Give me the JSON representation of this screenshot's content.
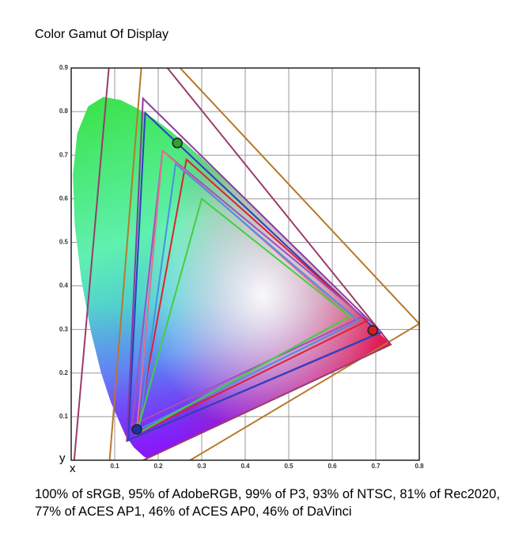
{
  "chart_data": {
    "type": "gamut",
    "title": "Color Gamut Of Display",
    "caption": "100% of sRGB, 95% of AdobeRGB, 99% of P3, 93% of NTSC, 81% of Rec2020, 77% of ACES AP1, 46% of ACES AP0, 46% of DaVinci",
    "x_label": "x",
    "y_label": "y",
    "xlim": [
      0,
      0.8
    ],
    "ylim": [
      0,
      0.9
    ],
    "xticks": [
      0.1,
      0.2,
      0.3,
      0.4,
      0.5,
      0.6,
      0.7,
      0.8
    ],
    "yticks": [
      0.1,
      0.2,
      0.3,
      0.4,
      0.5,
      0.6,
      0.7,
      0.8,
      0.9
    ],
    "grid": true,
    "locus": {
      "x": [
        0.1741,
        0.1666,
        0.144,
        0.1241,
        0.0913,
        0.0687,
        0.0454,
        0.0235,
        0.0082,
        0.0039,
        0.0139,
        0.0389,
        0.0743,
        0.1142,
        0.1547,
        0.1929,
        0.2296,
        0.2658,
        0.3016,
        0.3373,
        0.3731,
        0.4087,
        0.4441,
        0.4788,
        0.5125,
        0.5448,
        0.5752,
        0.6029,
        0.627,
        0.6482,
        0.6658,
        0.6801,
        0.6915,
        0.7006,
        0.7079,
        0.7347
      ],
      "y": [
        0.005,
        0.0089,
        0.0297,
        0.0578,
        0.1327,
        0.2007,
        0.295,
        0.4127,
        0.5384,
        0.6548,
        0.7502,
        0.812,
        0.8338,
        0.8262,
        0.8059,
        0.7816,
        0.7543,
        0.7243,
        0.6923,
        0.6589,
        0.6245,
        0.5896,
        0.5547,
        0.5202,
        0.4866,
        0.4544,
        0.4242,
        0.3965,
        0.3725,
        0.3514,
        0.334,
        0.3197,
        0.3083,
        0.2993,
        0.292,
        0.2653
      ]
    },
    "series": [
      {
        "color": "#b8782a",
        "x": [
          0.8,
          0.1682,
          0.079
        ],
        "y": [
          0.313,
          0.9877,
          -0.1155
        ]
      },
      {
        "color": "#9b3a6a",
        "x": [
          0.7347,
          0.0999,
          0.0001
        ],
        "y": [
          0.2653,
          1.05,
          -0.077
        ]
      },
      {
        "color": "#8a3a9a",
        "x": [
          0.713,
          0.165,
          0.128
        ],
        "y": [
          0.293,
          0.83,
          0.044
        ]
      },
      {
        "color": "#2a40c0",
        "x": [
          0.708,
          0.17,
          0.131
        ],
        "y": [
          0.292,
          0.797,
          0.046
        ]
      },
      {
        "color": "#e02030",
        "x": [
          0.68,
          0.265,
          0.15
        ],
        "y": [
          0.32,
          0.69,
          0.06
        ]
      },
      {
        "color": "#a050c0",
        "x": [
          0.67,
          0.21,
          0.14
        ],
        "y": [
          0.33,
          0.71,
          0.08
        ]
      },
      {
        "color": "#e07090",
        "x": [
          0.64,
          0.21,
          0.15
        ],
        "y": [
          0.33,
          0.71,
          0.06
        ]
      },
      {
        "color": "#4a90e0",
        "x": [
          0.66,
          0.24,
          0.155
        ],
        "y": [
          0.32,
          0.68,
          0.07
        ]
      },
      {
        "color": "#40d040",
        "x": [
          0.64,
          0.3,
          0.15
        ],
        "y": [
          0.33,
          0.6,
          0.06
        ]
      }
    ],
    "display_points": {
      "x": [
        0.693,
        0.244,
        0.151
      ],
      "y": [
        0.298,
        0.728,
        0.071
      ],
      "colors": [
        "#d02020",
        "#30a030",
        "#2030a0"
      ]
    }
  }
}
